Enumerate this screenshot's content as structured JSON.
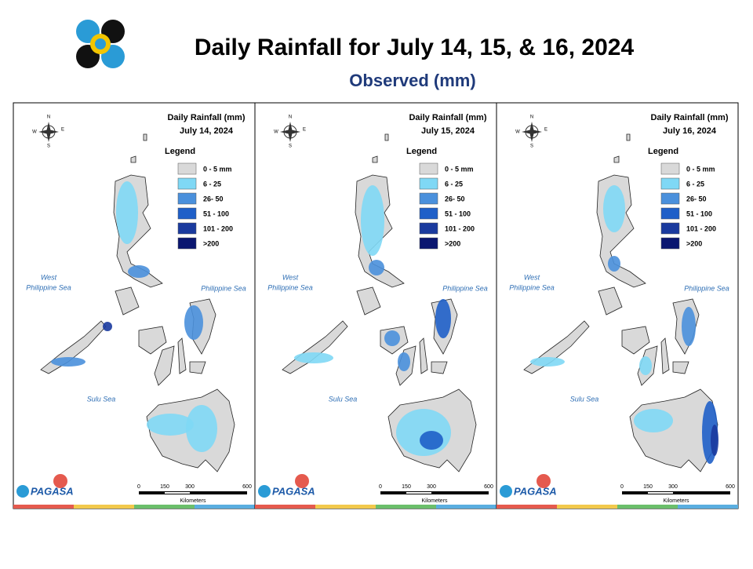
{
  "header": {
    "title": "Daily Rainfall for July 14, 15, & 16, 2024",
    "subtitle": "Observed (mm)"
  },
  "legend": {
    "title": "Legend",
    "items": [
      {
        "label": "0 - 5 mm",
        "color": "#d9d9d9"
      },
      {
        "label": "6 - 25",
        "color": "#7fd8f5"
      },
      {
        "label": "26- 50",
        "color": "#4a90dc"
      },
      {
        "label": "51 - 100",
        "color": "#1f5fc8"
      },
      {
        "label": "101 - 200",
        "color": "#1a3a9e"
      },
      {
        "label": ">200",
        "color": "#0a1670"
      }
    ]
  },
  "map_labels": {
    "heading": "Daily Rainfall (mm)",
    "west_sea_1": "West",
    "west_sea_2": "Philippine Sea",
    "east_sea": "Philippine Sea",
    "sulu_sea": "Sulu Sea",
    "north": "N",
    "east": "E",
    "west": "W",
    "south": "S",
    "scale": [
      "0",
      "150",
      "300",
      "600"
    ],
    "scale_unit": "Kilometers",
    "logo": "PAGASA"
  },
  "panels": [
    {
      "date": "July 14, 2024"
    },
    {
      "date": "July 15, 2024"
    },
    {
      "date": "July 16, 2024"
    }
  ]
}
